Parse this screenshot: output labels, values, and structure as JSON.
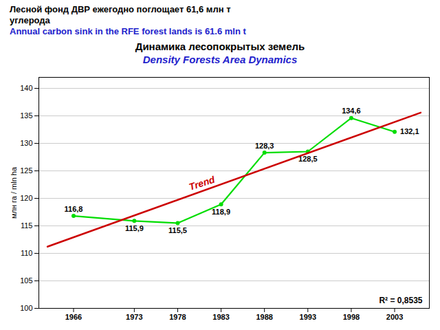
{
  "chart_data": {
    "type": "line",
    "header": [
      {
        "text": "Лесной фонд ДВР ежегодно поглощает 61,6 млн т",
        "color": "#000000"
      },
      {
        "text": "углерода",
        "color": "#000000"
      },
      {
        "text": "Annual carbon sink in the RFE forest lands is 61.6 mln t",
        "color": "#2222CC"
      }
    ],
    "title": "Динамика лесопокрытых земель",
    "title_color": "#000000",
    "subtitle": "Density Forests Area Dynamics",
    "subtitle_color": "#2222CC",
    "x": [
      1966,
      1973,
      1978,
      1983,
      1988,
      1993,
      1998,
      2003
    ],
    "series": [
      {
        "type": "line",
        "color": "#00DD00",
        "marker": "o",
        "values": [
          116.8,
          115.9,
          115.5,
          118.9,
          128.3,
          128.5,
          134.6,
          132.1
        ],
        "value_labels": [
          "116,8",
          "115,9",
          "115,5",
          "118,9",
          "128,3",
          "128,5",
          "134,6",
          "132,1"
        ]
      },
      {
        "name": "Trend",
        "type": "line",
        "color": "#CC0000",
        "x": [
          1963,
          2006
        ],
        "values": [
          111.218647,
          135.581486
        ]
      }
    ],
    "ylabel": "млн га / mln ha",
    "xlim": [
      1962,
      2007
    ],
    "xticks": [
      1966,
      1973,
      1978,
      1983,
      1988,
      1993,
      1998,
      2003
    ],
    "ylim": [
      100,
      142
    ],
    "yticks": [
      100,
      105,
      110,
      115,
      120,
      125,
      130,
      135,
      140
    ],
    "grid": true,
    "data_labels": true,
    "annotations": [
      "R² = 0,8535"
    ]
  }
}
